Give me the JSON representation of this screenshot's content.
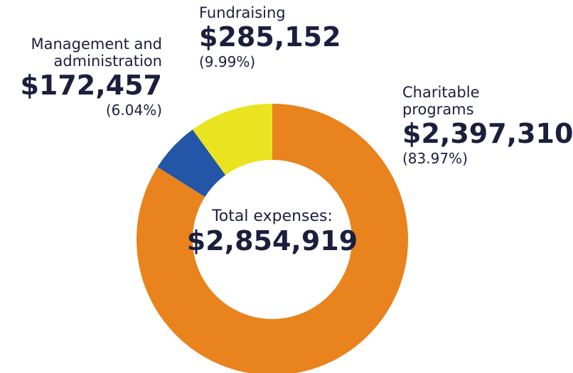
{
  "chart_data": {
    "type": "donut",
    "categories": [
      "Charitable programs",
      "Management and administration",
      "Fundraising"
    ],
    "values": [
      2397310,
      172457,
      285152
    ],
    "value_labels": [
      "$2,397,310",
      "$172,457",
      "$285,152"
    ],
    "percent_labels": [
      "(83.97%)",
      "(6.04%)",
      "(9.99%)"
    ],
    "colors": [
      "#e8831e",
      "#2356a6",
      "#e9e41f"
    ],
    "center_label": "Total expenses:",
    "total": 2854919,
    "total_label": "$2,854,919"
  }
}
